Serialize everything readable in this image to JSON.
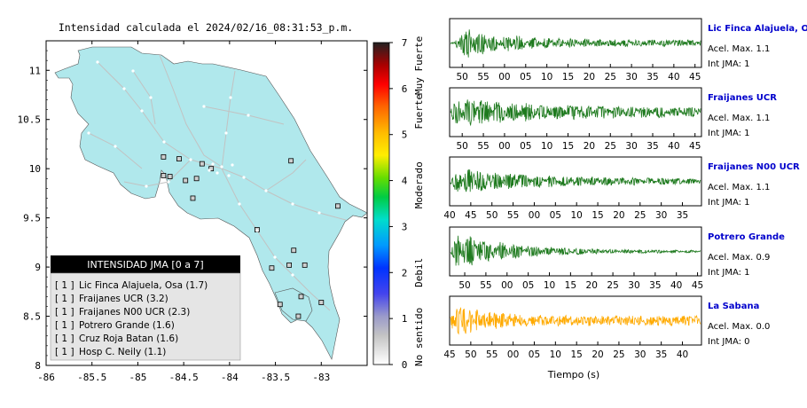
{
  "map": {
    "title": "Intensidad calculada el 2024/02/16_08:31:53_p.m.",
    "lat_ticks": [
      "11",
      "10.5",
      "10",
      "9.5",
      "9",
      "8.5",
      "8"
    ],
    "lon_ticks": [
      "-86",
      "-85.5",
      "-85",
      "-84.5",
      "-84",
      "-83.5",
      "-83"
    ],
    "land_color": "#b0e8ec",
    "stations": [
      {
        "lon": -84.72,
        "lat": 10.12
      },
      {
        "lon": -84.55,
        "lat": 10.1
      },
      {
        "lon": -84.3,
        "lat": 10.05
      },
      {
        "lon": -84.72,
        "lat": 9.93
      },
      {
        "lon": -84.65,
        "lat": 9.92
      },
      {
        "lon": -84.48,
        "lat": 9.88
      },
      {
        "lon": -84.36,
        "lat": 9.9
      },
      {
        "lon": -84.2,
        "lat": 10.0
      },
      {
        "lon": -83.33,
        "lat": 10.08
      },
      {
        "lon": -84.4,
        "lat": 9.7
      },
      {
        "lon": -82.82,
        "lat": 9.62
      },
      {
        "lon": -83.7,
        "lat": 9.38
      },
      {
        "lon": -83.3,
        "lat": 9.17
      },
      {
        "lon": -83.35,
        "lat": 9.02
      },
      {
        "lon": -83.18,
        "lat": 9.02
      },
      {
        "lon": -83.54,
        "lat": 8.99
      },
      {
        "lon": -83.22,
        "lat": 8.7
      },
      {
        "lon": -83.0,
        "lat": 8.64
      },
      {
        "lon": -83.45,
        "lat": 8.62
      },
      {
        "lon": -83.25,
        "lat": 8.5
      }
    ]
  },
  "legend": {
    "title": "INTENSIDAD JMA [0 a 7]",
    "entries": [
      {
        "badge": "[ 1 ]",
        "name": "Lic Finca Alajuela, Osa (1.7)"
      },
      {
        "badge": "[ 1 ]",
        "name": "Fraijanes UCR (3.2)"
      },
      {
        "badge": "[ 1 ]",
        "name": "Fraijanes N00 UCR (2.3)"
      },
      {
        "badge": "[ 1 ]",
        "name": "Potrero Grande (1.6)"
      },
      {
        "badge": "[ 1 ]",
        "name": "Cruz Roja Batan (1.6)"
      },
      {
        "badge": "[ 1 ]",
        "name": "Hosp C. Neily (1.1)"
      }
    ]
  },
  "colorbar": {
    "ticks": [
      "7",
      "6",
      "5",
      "4",
      "3",
      "2",
      "1",
      "0"
    ],
    "labels": [
      "Muy Fuerte",
      "Fuerte",
      "Moderado",
      "Debil",
      "No sentido"
    ]
  },
  "seismograms": [
    {
      "station": "Lic Finca Alajuela, Osa",
      "accel": "Acel. Max. 1.1",
      "jma": "Int JMA: 1",
      "color": "#1e7a1e",
      "ticks": [
        "50",
        "55",
        "00",
        "05",
        "10",
        "15",
        "20",
        "25",
        "30",
        "35",
        "40",
        "45"
      ],
      "first_tick_x": 0.05,
      "onset": 0.02,
      "amp": 0.85,
      "decay": 5.5,
      "floor": 0.14,
      "freq": 95
    },
    {
      "station": "Fraijanes UCR",
      "accel": "Acel. Max. 1.1",
      "jma": "Int JMA: 1",
      "color": "#1e7a1e",
      "ticks": [
        "50",
        "55",
        "00",
        "05",
        "10",
        "15",
        "20",
        "25",
        "30",
        "35",
        "40",
        "45"
      ],
      "first_tick_x": 0.05,
      "onset": 0.0,
      "amp": 0.75,
      "decay": 3.0,
      "floor": 0.2,
      "freq": 85
    },
    {
      "station": "Fraijanes N00 UCR",
      "accel": "Acel. Max. 1.1",
      "jma": "Int JMA: 1",
      "color": "#1e7a1e",
      "ticks": [
        "40",
        "45",
        "50",
        "55",
        "00",
        "05",
        "10",
        "15",
        "20",
        "25",
        "30",
        "35"
      ],
      "first_tick_x": 0.0,
      "onset": 0.0,
      "amp": 0.65,
      "decay": 3.2,
      "floor": 0.12,
      "freq": 90
    },
    {
      "station": "Potrero Grande",
      "accel": "Acel. Max. 0.9",
      "jma": "Int JMA: 1",
      "color": "#1e7a1e",
      "ticks": [
        "50",
        "55",
        "00",
        "05",
        "10",
        "15",
        "20",
        "25",
        "30",
        "35",
        "40",
        "45"
      ],
      "first_tick_x": 0.06,
      "onset": 0.0,
      "amp": 0.95,
      "decay": 4.5,
      "floor": 0.05,
      "freq": 80
    },
    {
      "station": "La Sabana",
      "accel": "Acel. Max. 0.0",
      "jma": "Int JMA: 0",
      "color": "#ffaa00",
      "ticks": [
        "45",
        "50",
        "55",
        "00",
        "05",
        "10",
        "15",
        "20",
        "25",
        "30",
        "35",
        "40"
      ],
      "first_tick_x": 0.0,
      "onset": 0.0,
      "amp": 0.9,
      "decay": 8.0,
      "floor": 0.22,
      "freq": 200
    }
  ],
  "seismo_xlabel": "Tiempo (s)"
}
